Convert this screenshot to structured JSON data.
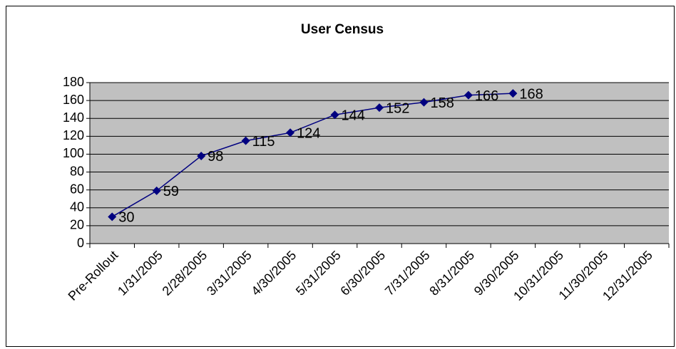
{
  "chart_data": {
    "type": "line",
    "title": "User Census",
    "categories": [
      "Pre-Rollout",
      "1/31/2005",
      "2/28/2005",
      "3/31/2005",
      "4/30/2005",
      "5/31/2005",
      "6/30/2005",
      "7/31/2005",
      "8/31/2005",
      "9/30/2005",
      "10/31/2005",
      "11/30/2005",
      "12/31/2005"
    ],
    "values": [
      30,
      59,
      98,
      115,
      124,
      144,
      152,
      158,
      166,
      168,
      null,
      null,
      null
    ],
    "color": "#000080",
    "ylim": [
      0,
      180
    ],
    "yticks": [
      0,
      20,
      40,
      60,
      80,
      100,
      120,
      140,
      160,
      180
    ],
    "grid": true
  }
}
